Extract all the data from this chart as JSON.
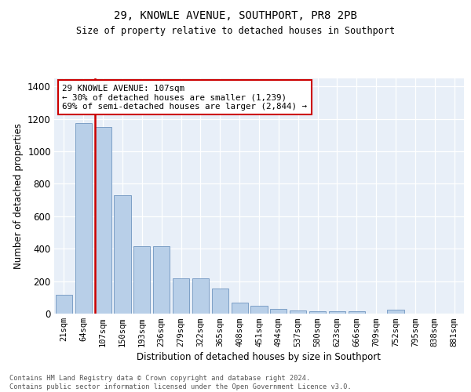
{
  "title": "29, KNOWLE AVENUE, SOUTHPORT, PR8 2PB",
  "subtitle": "Size of property relative to detached houses in Southport",
  "xlabel": "Distribution of detached houses by size in Southport",
  "ylabel": "Number of detached properties",
  "categories": [
    "21sqm",
    "64sqm",
    "107sqm",
    "150sqm",
    "193sqm",
    "236sqm",
    "279sqm",
    "322sqm",
    "365sqm",
    "408sqm",
    "451sqm",
    "494sqm",
    "537sqm",
    "580sqm",
    "623sqm",
    "666sqm",
    "709sqm",
    "752sqm",
    "795sqm",
    "838sqm",
    "881sqm"
  ],
  "values": [
    115,
    1175,
    1150,
    730,
    415,
    415,
    218,
    218,
    155,
    68,
    50,
    28,
    18,
    14,
    14,
    14,
    0,
    22,
    0,
    0,
    0
  ],
  "bar_color": "#b8cfe8",
  "bar_edge_color": "#7096c0",
  "highlight_index": 2,
  "highlight_color": "#cc0000",
  "ylim": [
    0,
    1450
  ],
  "yticks": [
    0,
    200,
    400,
    600,
    800,
    1000,
    1200,
    1400
  ],
  "annotation_text": "29 KNOWLE AVENUE: 107sqm\n← 30% of detached houses are smaller (1,239)\n69% of semi-detached houses are larger (2,844) →",
  "bg_color": "#e8eff8",
  "footer_line1": "Contains HM Land Registry data © Crown copyright and database right 2024.",
  "footer_line2": "Contains public sector information licensed under the Open Government Licence v3.0."
}
